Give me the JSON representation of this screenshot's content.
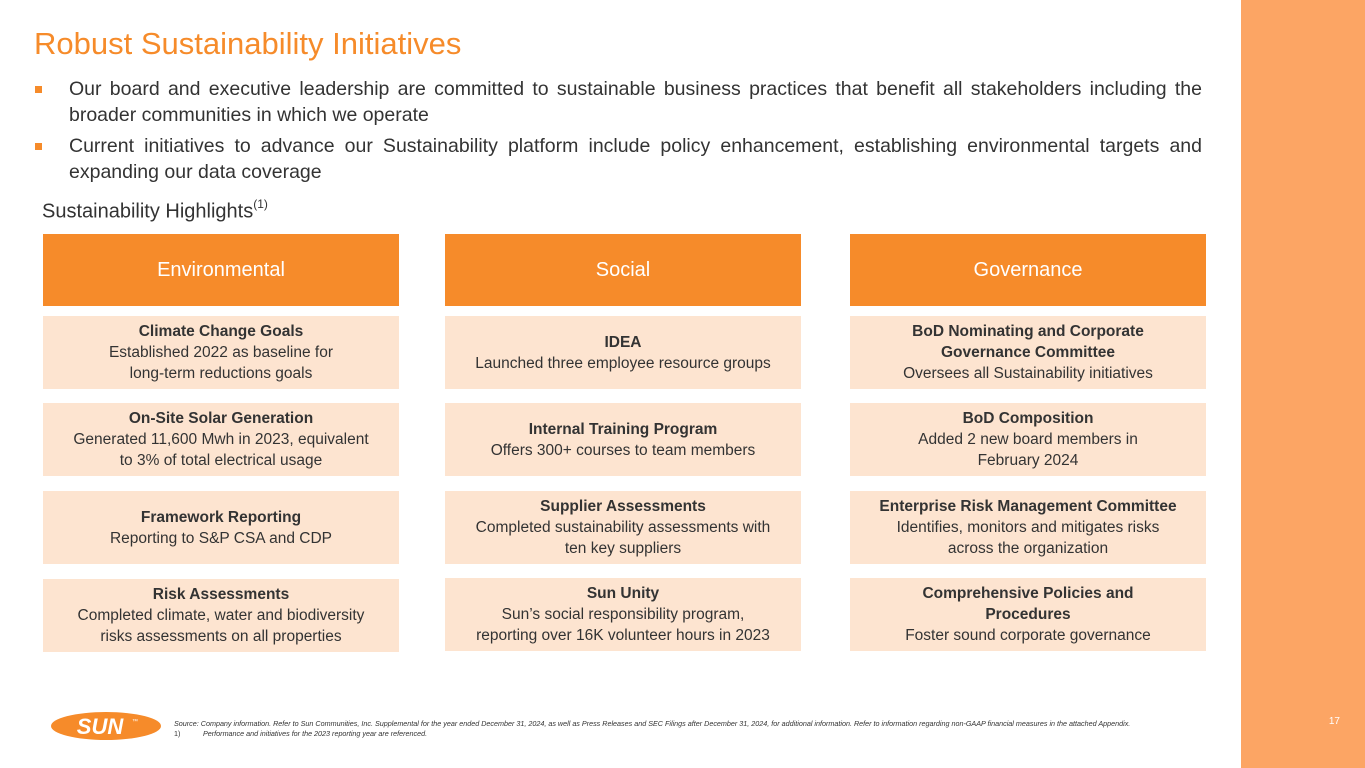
{
  "page": {
    "title": "Robust Sustainability Initiatives",
    "page_number": "17",
    "bullets": [
      "Our board and executive leadership are committed to sustainable business practices that benefit all stakeholders including the broader communities in which we operate",
      "Current initiatives to advance our Sustainability platform include policy enhancement, establishing environmental targets and expanding our data coverage"
    ],
    "highlights": {
      "title": "Sustainability Highlights",
      "footnote_ref": "(1)"
    }
  },
  "columns": [
    {
      "header": "Environmental",
      "cards": [
        {
          "title": "Climate Change Goals",
          "lines": [
            "Established 2022 as baseline for",
            "long-term reductions goals"
          ]
        },
        {
          "title": "On-Site Solar Generation",
          "lines": [
            "Generated 11,600 Mwh in 2023, equivalent",
            "to 3% of total electrical usage"
          ]
        },
        {
          "title": "Framework Reporting",
          "lines": [
            "Reporting to S&P CSA and CDP",
            ""
          ]
        },
        {
          "title": "Risk Assessments",
          "lines": [
            "Completed climate, water and biodiversity",
            "risks assessments on all properties"
          ]
        }
      ]
    },
    {
      "header": "Social",
      "cards": [
        {
          "title": "IDEA",
          "lines": [
            "Launched three employee resource groups",
            ""
          ]
        },
        {
          "title": "Internal Training Program",
          "lines": [
            "Offers 300+ courses to team members",
            ""
          ]
        },
        {
          "title": "Supplier Assessments",
          "lines": [
            "Completed sustainability assessments with",
            "ten key suppliers"
          ]
        },
        {
          "title": "Sun Unity",
          "lines": [
            "Sun’s social responsibility program,",
            "reporting over 16K volunteer hours in 2023"
          ]
        }
      ]
    },
    {
      "header": "Governance",
      "cards": [
        {
          "title": "BoD Nominating and Corporate Governance Committee",
          "lines": [
            "Oversees all Sustainability initiatives",
            ""
          ]
        },
        {
          "title": "BoD Composition",
          "lines": [
            "Added 2 new board members in",
            "February 2024"
          ]
        },
        {
          "title": "Enterprise Risk Management Committee",
          "lines": [
            "Identifies, monitors and mitigates risks",
            "across the organization"
          ]
        },
        {
          "title": "Comprehensive Policies and Procedures",
          "lines": [
            "Foster sound corporate governance",
            ""
          ]
        }
      ]
    }
  ],
  "footer": {
    "logo_text": "SUN",
    "logo_tm": "™",
    "source": "Source: Company information.  Refer to Sun Communities, Inc. Supplemental for the year ended December 31, 2024, as well as Press Releases and SEC Filings after December 31, 2024, for additional information. Refer to information regarding non-GAAP financial measures in the attached Appendix.",
    "footnote_number": "1)",
    "footnote_text": "Performance and initiatives for the 2023 reporting year are referenced."
  },
  "colors": {
    "accent": "#f68b2a",
    "card_bg": "#fde4d0",
    "side_bar": "#fca564"
  }
}
